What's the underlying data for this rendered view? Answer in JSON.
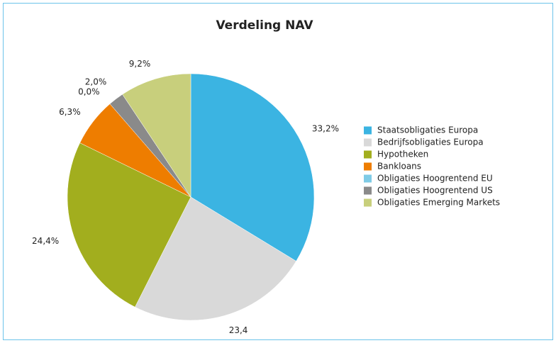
{
  "chart_data": {
    "type": "pie",
    "title": "Verdeling NAV",
    "categories": [
      "Staatsobligaties Europa",
      "Bedrijfsobligaties Europa",
      "Hypotheken",
      "Bankloans",
      "Obligaties Hoogrentend EU",
      "Obligaties Hoogrentend US",
      "Obligaties Emerging Markets"
    ],
    "values": [
      33.2,
      23.4,
      24.4,
      6.3,
      0.0,
      2.0,
      9.2
    ],
    "value_labels": [
      "33,2%",
      "23,4",
      "24,4%",
      "6,3%",
      "0,0%",
      "2,0%",
      "9,2%"
    ],
    "colors": [
      "#3bb4e2",
      "#d9d9d9",
      "#a2ae1e",
      "#ee7d00",
      "#7fcbe6",
      "#8a8a8a",
      "#c8cf7c"
    ],
    "legend": "right"
  }
}
